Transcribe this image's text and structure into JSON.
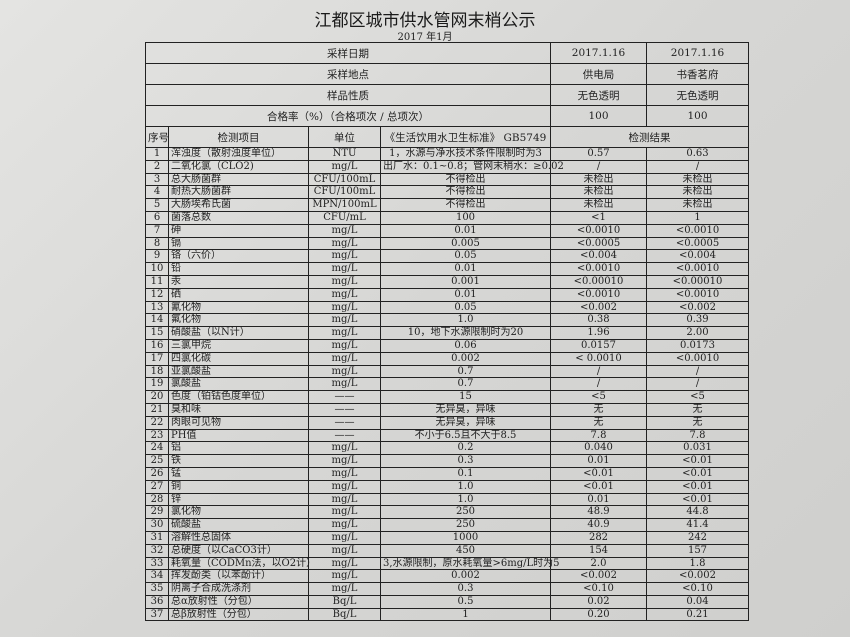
{
  "title": "江都区城市供水管网末梢公示",
  "subtitle": "2017 年1月",
  "info": [
    {
      "label": "采样日期",
      "v1": "2017.1.16",
      "v2": "2017.1.16"
    },
    {
      "label": "采样地点",
      "v1": "供电局",
      "v2": "书香茗府"
    },
    {
      "label": "样品性质",
      "v1": "无色透明",
      "v2": "无色透明"
    },
    {
      "label": "合格率（%）（合格项次 / 总项次）",
      "v1": "100",
      "v2": "100"
    }
  ],
  "headers": {
    "no": "序号",
    "item": "检测项目",
    "unit": "单位",
    "standard": "《生活饮用水卫生标准》 GB5749",
    "result": "检测结果"
  },
  "rows": [
    [
      "1",
      "浑浊度（散射浊度单位）",
      "NTU",
      "1，水源与净水技术条件限制时为3",
      "0.57",
      "0.63"
    ],
    [
      "2",
      "二氧化氯（CLO2)",
      "mg/L",
      "出厂水：0.1~0.8；管网末稍水：≥0.02",
      "/",
      "/"
    ],
    [
      "3",
      "总大肠菌群",
      "CFU/100mL",
      "不得检出",
      "未检出",
      "未检出"
    ],
    [
      "4",
      "耐热大肠菌群",
      "CFU/100mL",
      "不得检出",
      "未检出",
      "未检出"
    ],
    [
      "5",
      "大肠埃希氏菌",
      "MPN/100mL",
      "不得检出",
      "未检出",
      "未检出"
    ],
    [
      "6",
      "菌落总数",
      "CFU/mL",
      "100",
      "<1",
      "1"
    ],
    [
      "7",
      "砷",
      "mg/L",
      "0.01",
      "<0.0010",
      "<0.0010"
    ],
    [
      "8",
      "镉",
      "mg/L",
      "0.005",
      "<0.0005",
      "<0.0005"
    ],
    [
      "9",
      "铬（六价）",
      "mg/L",
      "0.05",
      "<0.004",
      "<0.004"
    ],
    [
      "10",
      "铅",
      "mg/L",
      "0.01",
      "<0.0010",
      "<0.0010"
    ],
    [
      "11",
      "汞",
      "mg/L",
      "0.001",
      "<0.00010",
      "<0.00010"
    ],
    [
      "12",
      "硒",
      "mg/L",
      "0.01",
      "<0.0010",
      "<0.0010"
    ],
    [
      "13",
      "氰化物",
      "mg/L",
      "0.05",
      "<0.002",
      "<0.002"
    ],
    [
      "14",
      "氟化物",
      "mg/L",
      "1.0",
      "0.38",
      "0.39"
    ],
    [
      "15",
      "硝酸盐（以N计）",
      "mg/L",
      "10，地下水源限制时为20",
      "1.96",
      "2.00"
    ],
    [
      "16",
      "三氯甲烷",
      "mg/L",
      "0.06",
      "0.0157",
      "0.0173"
    ],
    [
      "17",
      "四氯化碳",
      "mg/L",
      "0.002",
      "< 0.0010",
      "<0.0010"
    ],
    [
      "18",
      "亚氯酸盐",
      "mg/L",
      "0.7",
      "/",
      "/"
    ],
    [
      "19",
      "氯酸盐",
      "mg/L",
      "0.7",
      "/",
      "/"
    ],
    [
      "20",
      "色度（铂钴色度单位）",
      "——",
      "15",
      "<5",
      "<5"
    ],
    [
      "21",
      "臭和味",
      "——",
      "无异臭，异味",
      "无",
      "无"
    ],
    [
      "22",
      "肉眼可见物",
      "——",
      "无异臭，异味",
      "无",
      "无"
    ],
    [
      "23",
      "PH值",
      "——",
      "不小于6.5且不大于8.5",
      "7.8",
      "7.8"
    ],
    [
      "24",
      "铝",
      "mg/L",
      "0.2",
      "0.040",
      "0.031"
    ],
    [
      "25",
      "铁",
      "mg/L",
      "0.3",
      "0.01",
      "<0.01"
    ],
    [
      "26",
      "锰",
      "mg/L",
      "0.1",
      "<0.01",
      "<0.01"
    ],
    [
      "27",
      "铜",
      "mg/L",
      "1.0",
      "<0.01",
      "<0.01"
    ],
    [
      "28",
      "锌",
      "mg/L",
      "1.0",
      "0.01",
      "<0.01"
    ],
    [
      "29",
      "氯化物",
      "mg/L",
      "250",
      "48.9",
      "44.8"
    ],
    [
      "30",
      "硫酸盐",
      "mg/L",
      "250",
      "40.9",
      "41.4"
    ],
    [
      "31",
      "溶解性总固体",
      "mg/L",
      "1000",
      "282",
      "242"
    ],
    [
      "32",
      "总硬度（以CaCO3计）",
      "mg/L",
      "450",
      "154",
      "157"
    ],
    [
      "33",
      "耗氧量（CODMn法，以O2计）",
      "mg/L",
      "3,水源限制，原水耗氧量>6mg/L时为5",
      "2.0",
      "1.8"
    ],
    [
      "34",
      "挥发酚类（以苯酚计）",
      "mg/L",
      "0.002",
      "<0.002",
      "<0.002"
    ],
    [
      "35",
      "阴离子合成洗涤剂",
      "mg/L",
      "0.3",
      "<0.10",
      "<0.10"
    ],
    [
      "36",
      "总α放射性（分包）",
      "Bq/L",
      "0.5",
      "0.02",
      "0.04"
    ],
    [
      "37",
      "总β放射性（分包）",
      "Bq/L",
      "1",
      "0.20",
      "0.21"
    ]
  ]
}
